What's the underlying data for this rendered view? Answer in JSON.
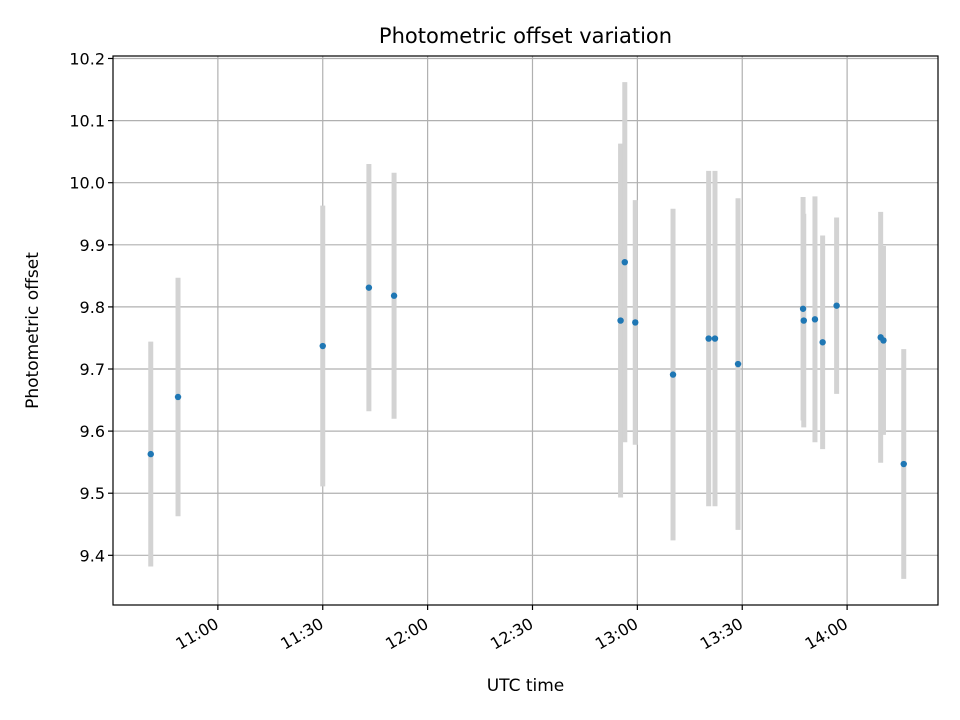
{
  "chart_data": {
    "type": "scatter",
    "title": "Photometric offset variation",
    "xlabel": "UTC time",
    "ylabel": "Photometric offset",
    "xlim": [
      "10:30",
      "14:26"
    ],
    "ylim": [
      9.32,
      10.204
    ],
    "x_ticks": [
      "11:00",
      "11:30",
      "12:00",
      "12:30",
      "13:00",
      "13:30",
      "14:00"
    ],
    "y_ticks": [
      "9.4",
      "9.5",
      "9.6",
      "9.7",
      "9.8",
      "9.9",
      "10.0",
      "10.1",
      "10.2"
    ],
    "grid": true,
    "point_color": "#1f77b4",
    "errorbar_color": "#d3d3d3",
    "points": [
      {
        "x": "10:40:48",
        "y": 9.563,
        "err": 0.181
      },
      {
        "x": "10:48:36",
        "y": 9.655,
        "err": 0.192
      },
      {
        "x": "11:30:00",
        "y": 9.737,
        "err": 0.226
      },
      {
        "x": "11:43:12",
        "y": 9.831,
        "err": 0.199
      },
      {
        "x": "11:50:24",
        "y": 9.818,
        "err": 0.198
      },
      {
        "x": "12:55:12",
        "y": 9.778,
        "err": 0.285
      },
      {
        "x": "12:56:24",
        "y": 9.872,
        "err": 0.29
      },
      {
        "x": "12:59:24",
        "y": 9.775,
        "err": 0.197
      },
      {
        "x": "13:10:12",
        "y": 9.691,
        "err": 0.267
      },
      {
        "x": "13:20:24",
        "y": 9.749,
        "err": 0.27
      },
      {
        "x": "13:22:12",
        "y": 9.749,
        "err": 0.27
      },
      {
        "x": "13:28:48",
        "y": 9.708,
        "err": 0.267
      },
      {
        "x": "13:47:24",
        "y": 9.797,
        "err": 0.18
      },
      {
        "x": "13:47:36",
        "y": 9.778,
        "err": 0.172
      },
      {
        "x": "13:50:48",
        "y": 9.78,
        "err": 0.198
      },
      {
        "x": "13:53:00",
        "y": 9.743,
        "err": 0.172
      },
      {
        "x": "13:57:00",
        "y": 9.802,
        "err": 0.142
      },
      {
        "x": "14:09:36",
        "y": 9.751,
        "err": 0.202
      },
      {
        "x": "14:10:24",
        "y": 9.746,
        "err": 0.152
      },
      {
        "x": "14:16:12",
        "y": 9.547,
        "err": 0.185
      }
    ]
  }
}
